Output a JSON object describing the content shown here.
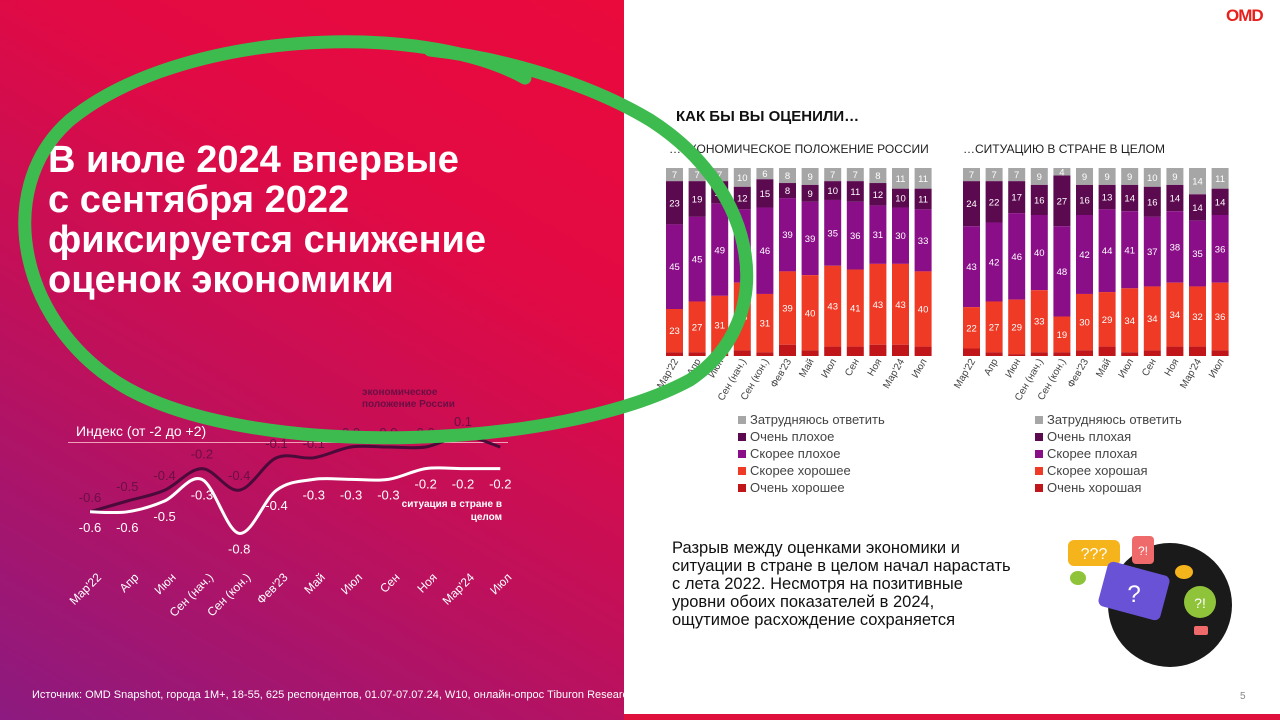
{
  "headline": [
    "В июле 2024 впервые",
    "с сентября 2022",
    "фиксируется снижение",
    "оценок экономики"
  ],
  "source": "Источник: OMD Snapshot, города 1М+, 18-55, 625 респондентов, 01.07-07.07.24, W10, онлайн-опрос Tiburon Research",
  "page_number": "5",
  "logo": "OMD",
  "summary": "Разрыв между оценками экономики и ситуации в стране в целом начал нарастать с лета 2022. Несмотря на позитивные уровни обоих показателей в 2024, ощутимое расхождение сохраняется",
  "question_title": "КАК БЫ ВЫ ОЦЕНИЛИ…",
  "colors": {
    "dont_know": "#a6a6a6",
    "very_bad": "#5c0a50",
    "rather_bad": "#8a0e88",
    "rather_good": "#ef3a25",
    "very_good": "#c0161a",
    "highlight_circle": "#3dbb4f"
  },
  "chart_data": [
    {
      "type": "line",
      "ylabel": "Индекс (от -2 до +2)",
      "categories": [
        "Мар'22",
        "Апр",
        "Июн",
        "Сен (нач.)",
        "Сен (кон.)",
        "Фев'23",
        "Май",
        "Июл",
        "Сен",
        "Ноя",
        "Мар'24",
        "Июл"
      ],
      "series": [
        {
          "name": "экономическое положение России",
          "values": [
            -0.6,
            -0.5,
            -0.4,
            -0.2,
            -0.4,
            -0.1,
            -0.1,
            0.0,
            0.0,
            0.0,
            0.1,
            0.0
          ],
          "color": "#4a0a3a"
        },
        {
          "name": "ситуация в стране в целом",
          "values": [
            -0.6,
            -0.6,
            -0.5,
            -0.3,
            -0.8,
            -0.4,
            -0.3,
            -0.3,
            -0.3,
            -0.2,
            -0.2,
            -0.2
          ],
          "color": "#ffffff"
        }
      ]
    },
    {
      "type": "bar",
      "stacked": true,
      "subtitle": "…ЭКОНОМИЧЕСКОЕ ПОЛОЖЕНИЕ РОССИИ",
      "categories": [
        "Мар'22",
        "Апр",
        "Июн",
        "Сен (нач.)",
        "Сен (кон.)",
        "Фев'23",
        "Май",
        "Июл",
        "Сен",
        "Ноя",
        "Мар'24",
        "Июл"
      ],
      "legend": [
        "Затрудняюсь ответить",
        "Очень плохое",
        "Скорее плохое",
        "Скорее хорошее",
        "Очень хорошее"
      ],
      "series": [
        {
          "key": "dont_know",
          "values": [
            7,
            7,
            7,
            10,
            6,
            8,
            9,
            7,
            7,
            8,
            11,
            11
          ]
        },
        {
          "key": "very_bad",
          "values": [
            23,
            19,
            12,
            12,
            15,
            8,
            9,
            10,
            11,
            12,
            10,
            11
          ]
        },
        {
          "key": "rather_bad",
          "values": [
            45,
            45,
            49,
            39,
            46,
            39,
            39,
            35,
            36,
            31,
            30,
            33
          ]
        },
        {
          "key": "rather_good",
          "values": [
            23,
            27,
            31,
            36,
            31,
            39,
            40,
            43,
            41,
            43,
            43,
            40
          ]
        },
        {
          "key": "very_good",
          "values": [
            2,
            2,
            1,
            3,
            2,
            6,
            3,
            5,
            5,
            6,
            6,
            5
          ]
        }
      ]
    },
    {
      "type": "bar",
      "stacked": true,
      "subtitle": "…СИТУАЦИЮ В СТРАНЕ В ЦЕЛОМ",
      "categories": [
        "Мар'22",
        "Апр",
        "Июн",
        "Сен (нач.)",
        "Сен (кон.)",
        "Фев'23",
        "Май",
        "Июл",
        "Сен",
        "Ноя",
        "Мар'24",
        "Июл"
      ],
      "legend": [
        "Затрудняюсь ответить",
        "Очень плохая",
        "Скорее плохая",
        "Скорее хорошая",
        "Очень хорошая"
      ],
      "series": [
        {
          "key": "dont_know",
          "values": [
            7,
            7,
            7,
            9,
            4,
            9,
            9,
            9,
            10,
            9,
            14,
            11
          ]
        },
        {
          "key": "very_bad",
          "values": [
            24,
            22,
            17,
            16,
            27,
            16,
            13,
            14,
            16,
            14,
            14,
            14
          ]
        },
        {
          "key": "rather_bad",
          "values": [
            43,
            42,
            46,
            40,
            48,
            42,
            44,
            41,
            37,
            38,
            35,
            36
          ]
        },
        {
          "key": "rather_good",
          "values": [
            22,
            27,
            29,
            33,
            19,
            30,
            29,
            34,
            34,
            34,
            32,
            36
          ]
        },
        {
          "key": "very_good",
          "values": [
            4,
            2,
            1,
            2,
            2,
            3,
            5,
            2,
            3,
            5,
            5,
            3
          ]
        }
      ]
    }
  ]
}
